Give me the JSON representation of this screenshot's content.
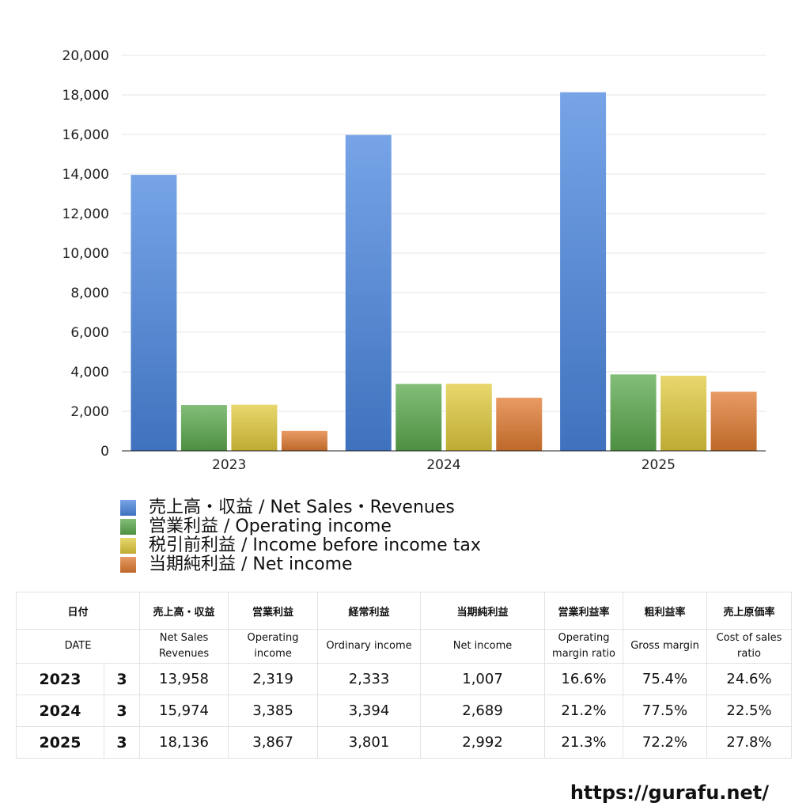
{
  "chart_data": {
    "type": "bar",
    "categories": [
      "2023",
      "2024",
      "2025"
    ],
    "series": [
      {
        "name": "売上高・収益 / Net Sales・Revenues",
        "values": [
          13958,
          15974,
          18136
        ],
        "color": "#4a86df"
      },
      {
        "name": "営業利益 / Operating income",
        "values": [
          2319,
          3385,
          3867
        ],
        "color": "#5aa84c"
      },
      {
        "name": "税引前利益 / Income before income tax",
        "values": [
          2333,
          3394,
          3801
        ],
        "color": "#e0c93c"
      },
      {
        "name": "当期純利益 / Net income",
        "values": [
          1007,
          2689,
          2992
        ],
        "color": "#e07a30"
      }
    ],
    "ylim": [
      0,
      20000
    ],
    "yticks": [
      "0",
      "2,000",
      "4,000",
      "6,000",
      "8,000",
      "10,000",
      "12,000",
      "14,000",
      "16,000",
      "18,000",
      "20,000"
    ],
    "grid": true,
    "legend_position": "bottom-left"
  },
  "table": {
    "header_jp": [
      "日付",
      "売上高・収益",
      "営業利益",
      "経常利益",
      "当期純利益",
      "営業利益率",
      "粗利益率",
      "売上原価率"
    ],
    "header_en": [
      "DATE",
      "Net Sales Revenues",
      "Operating income",
      "Ordinary income",
      "Net income",
      "Operating margin ratio",
      "Gross margin",
      "Cost of sales ratio"
    ],
    "rows": [
      {
        "year": "2023",
        "month": "3",
        "cells": [
          "13,958",
          "2,319",
          "2,333",
          "1,007",
          "16.6%",
          "75.4%",
          "24.6%"
        ]
      },
      {
        "year": "2024",
        "month": "3",
        "cells": [
          "15,974",
          "3,385",
          "3,394",
          "2,689",
          "21.2%",
          "77.5%",
          "22.5%"
        ]
      },
      {
        "year": "2025",
        "month": "3",
        "cells": [
          "18,136",
          "3,867",
          "3,801",
          "2,992",
          "21.3%",
          "72.2%",
          "27.8%"
        ]
      }
    ]
  },
  "footer": {
    "site_url": "https://gurafu.net/"
  }
}
